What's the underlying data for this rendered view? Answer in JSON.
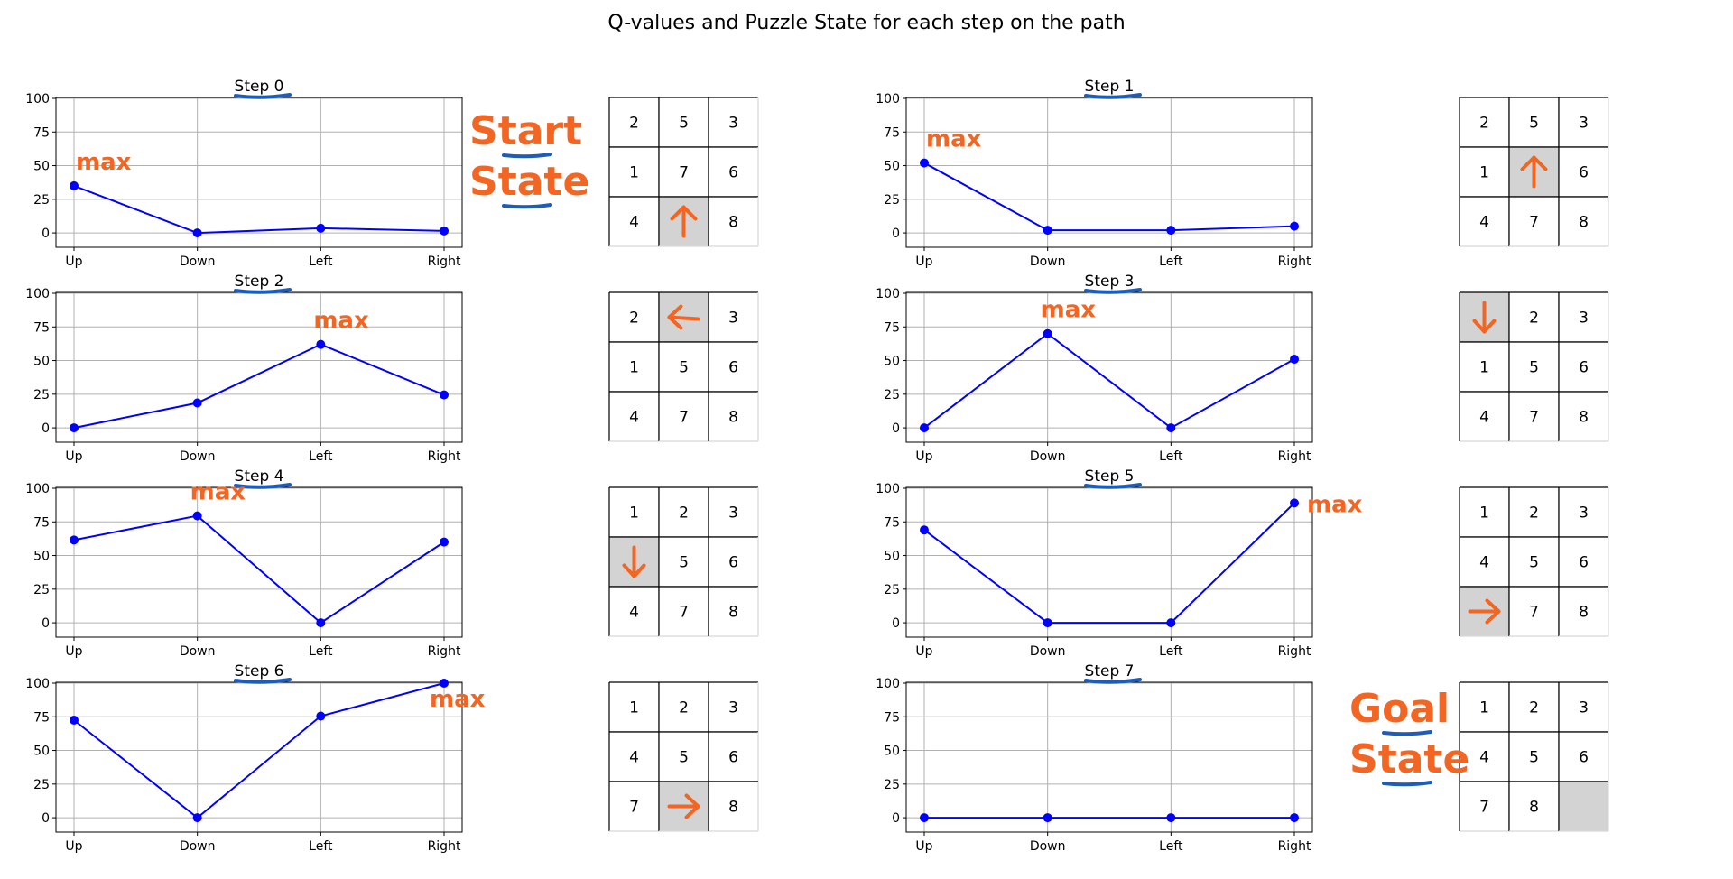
{
  "title": "Q-values and Puzzle State for each step on the path",
  "colors": {
    "line": "#0000ff",
    "grid": "#b0b0b0",
    "annotation": "#f26522",
    "underline": "#1d5db8",
    "highlight": "#d3d3d3"
  },
  "chart_data": [
    {
      "type": "line",
      "title": "Step 0",
      "categories": [
        "Up",
        "Down",
        "Left",
        "Right"
      ],
      "values": [
        35,
        0,
        3.5,
        1.5
      ],
      "ylim": [
        0,
        100
      ],
      "yticks": [
        0,
        25,
        50,
        75,
        100
      ],
      "grid": true
    },
    {
      "type": "line",
      "title": "Step 1",
      "categories": [
        "Up",
        "Down",
        "Left",
        "Right"
      ],
      "values": [
        52,
        2,
        2,
        5
      ],
      "ylim": [
        0,
        100
      ],
      "yticks": [
        0,
        25,
        50,
        75,
        100
      ],
      "grid": true
    },
    {
      "type": "line",
      "title": "Step 2",
      "categories": [
        "Up",
        "Down",
        "Left",
        "Right"
      ],
      "values": [
        0,
        18.5,
        62,
        24.5
      ],
      "ylim": [
        0,
        100
      ],
      "yticks": [
        0,
        25,
        50,
        75,
        100
      ],
      "grid": true
    },
    {
      "type": "line",
      "title": "Step 3",
      "categories": [
        "Up",
        "Down",
        "Left",
        "Right"
      ],
      "values": [
        0,
        70,
        0,
        51
      ],
      "ylim": [
        0,
        100
      ],
      "yticks": [
        0,
        25,
        50,
        75,
        100
      ],
      "grid": true
    },
    {
      "type": "line",
      "title": "Step 4",
      "categories": [
        "Up",
        "Down",
        "Left",
        "Right"
      ],
      "values": [
        61.5,
        79.5,
        0,
        60
      ],
      "ylim": [
        0,
        100
      ],
      "yticks": [
        0,
        25,
        50,
        75,
        100
      ],
      "grid": true
    },
    {
      "type": "line",
      "title": "Step 5",
      "categories": [
        "Up",
        "Down",
        "Left",
        "Right"
      ],
      "values": [
        69,
        0,
        0,
        89
      ],
      "ylim": [
        0,
        100
      ],
      "yticks": [
        0,
        25,
        50,
        75,
        100
      ],
      "grid": true
    },
    {
      "type": "line",
      "title": "Step 6",
      "categories": [
        "Up",
        "Down",
        "Left",
        "Right"
      ],
      "values": [
        72.5,
        0,
        75.5,
        100
      ],
      "ylim": [
        0,
        100
      ],
      "yticks": [
        0,
        25,
        50,
        75,
        100
      ],
      "grid": true
    },
    {
      "type": "line",
      "title": "Step 7",
      "categories": [
        "Up",
        "Down",
        "Left",
        "Right"
      ],
      "values": [
        0,
        0,
        0,
        0
      ],
      "ylim": [
        0,
        100
      ],
      "yticks": [
        0,
        25,
        50,
        75,
        100
      ],
      "grid": true
    }
  ],
  "puzzles": [
    {
      "cells": [
        "2",
        "5",
        "3",
        "1",
        "7",
        "6",
        "4",
        "",
        "8"
      ],
      "blank_index": 7,
      "arrow": "up"
    },
    {
      "cells": [
        "2",
        "5",
        "3",
        "1",
        "",
        "6",
        "4",
        "7",
        "8"
      ],
      "blank_index": 4,
      "arrow": "up"
    },
    {
      "cells": [
        "2",
        "",
        "3",
        "1",
        "5",
        "6",
        "4",
        "7",
        "8"
      ],
      "blank_index": 1,
      "arrow": "left"
    },
    {
      "cells": [
        "",
        "2",
        "3",
        "1",
        "5",
        "6",
        "4",
        "7",
        "8"
      ],
      "blank_index": 0,
      "arrow": "down"
    },
    {
      "cells": [
        "1",
        "2",
        "3",
        "",
        "5",
        "6",
        "4",
        "7",
        "8"
      ],
      "blank_index": 3,
      "arrow": "down"
    },
    {
      "cells": [
        "1",
        "2",
        "3",
        "4",
        "5",
        "6",
        "",
        "7",
        "8"
      ],
      "blank_index": 6,
      "arrow": "right"
    },
    {
      "cells": [
        "1",
        "2",
        "3",
        "4",
        "5",
        "6",
        "7",
        "",
        "8"
      ],
      "blank_index": 7,
      "arrow": "right"
    },
    {
      "cells": [
        "1",
        "2",
        "3",
        "4",
        "5",
        "6",
        "7",
        "8",
        ""
      ],
      "blank_index": 8,
      "arrow": "none"
    }
  ],
  "annotations": {
    "max_label": "max",
    "start_lines": [
      "Start",
      "State"
    ],
    "goal_lines": [
      "Goal",
      "State"
    ]
  }
}
